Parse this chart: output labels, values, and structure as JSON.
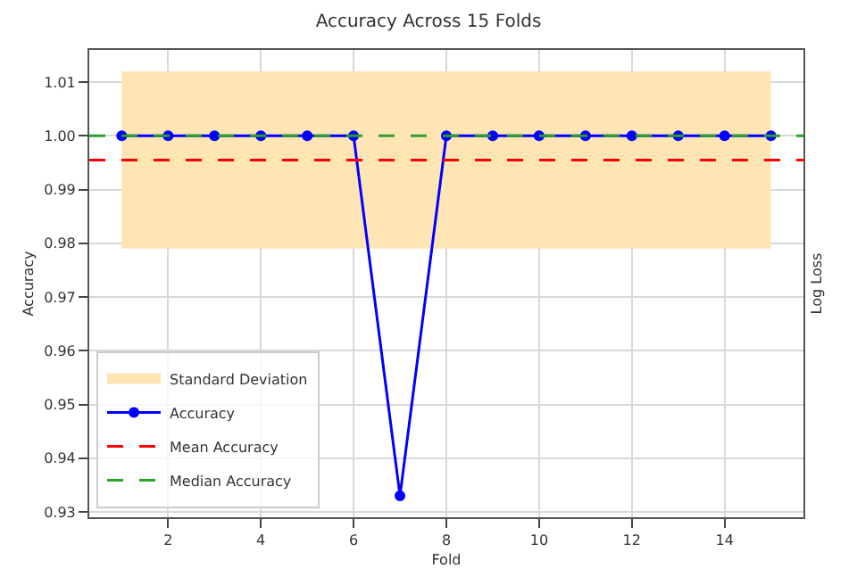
{
  "chart_data": {
    "type": "line",
    "title": "Accuracy Across 15 Folds",
    "xlabel": "Fold",
    "ylabel": "Accuracy",
    "y2label": "Log Loss",
    "x": [
      1,
      2,
      3,
      4,
      5,
      6,
      7,
      8,
      9,
      10,
      11,
      12,
      13,
      14,
      15
    ],
    "series": [
      {
        "name": "Accuracy",
        "color": "#0000ff",
        "values": [
          1.0,
          1.0,
          1.0,
          1.0,
          1.0,
          1.0,
          0.933,
          1.0,
          1.0,
          1.0,
          1.0,
          1.0,
          1.0,
          1.0,
          1.0
        ]
      }
    ],
    "ref_lines": [
      {
        "axis": "y",
        "value": 0.9955,
        "label": "Mean Accuracy",
        "color": "#ff0000",
        "line_style": "dashed"
      },
      {
        "axis": "y",
        "value": 1.0,
        "label": "Median Accuracy",
        "color": "#2ca02c",
        "line_style": "dashed"
      }
    ],
    "bands": [
      {
        "axis": "y",
        "from": 0.979,
        "to": 1.012,
        "label": "Standard Deviation",
        "color": "#ffe5b4"
      }
    ],
    "xlim": [
      0.3,
      15.7
    ],
    "xticks": [
      2,
      4,
      6,
      8,
      10,
      12,
      14
    ],
    "ylim": [
      0.929,
      1.016
    ],
    "yticks": [
      {
        "value": 0.93,
        "label": "0.93"
      },
      {
        "value": 0.94,
        "label": "0.94"
      },
      {
        "value": 0.95,
        "label": "0.95"
      },
      {
        "value": 0.96,
        "label": "0.96"
      },
      {
        "value": 0.97,
        "label": "0.97"
      },
      {
        "value": 0.98,
        "label": "0.98"
      },
      {
        "value": 0.99,
        "label": "0.99"
      },
      {
        "value": 1.0,
        "label": "1.00"
      },
      {
        "value": 1.01,
        "label": "1.01"
      }
    ],
    "grid": true,
    "legend": "bottom left",
    "marker": "circle",
    "line_style": "solid"
  }
}
